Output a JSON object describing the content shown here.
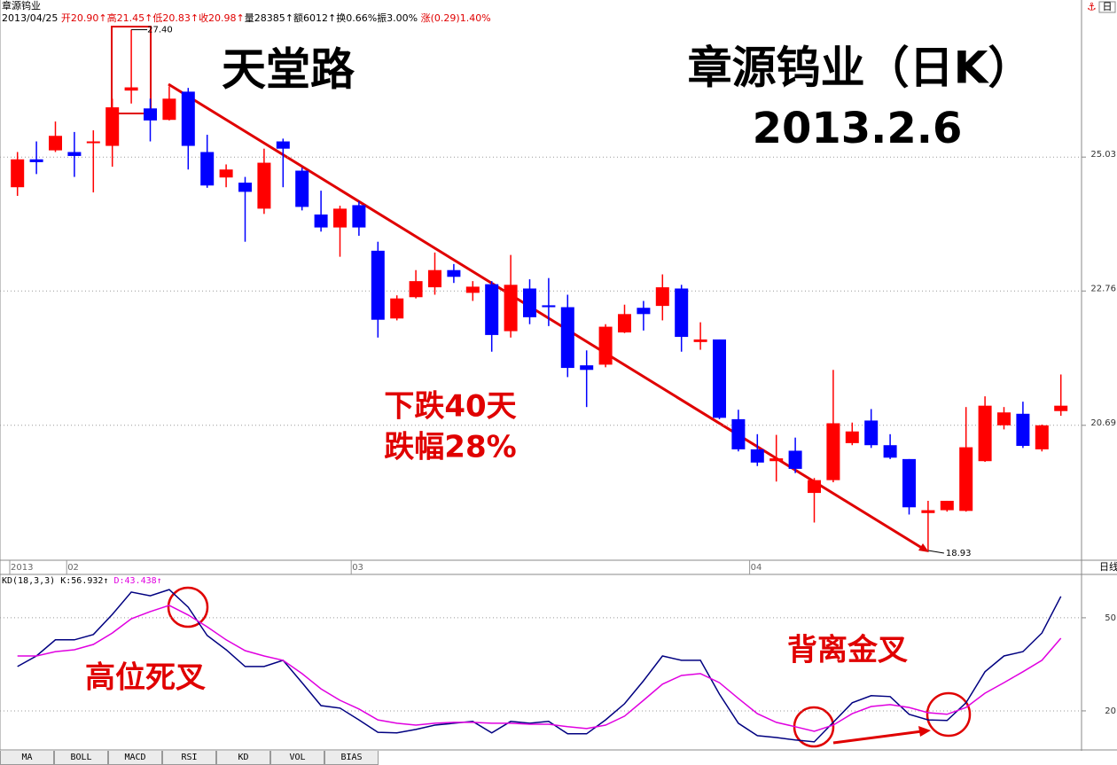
{
  "chart_data": [
    {
      "type": "candlestick",
      "title": "章源钨业",
      "quote": [
        "2013/04/25",
        "开20.90↑",
        "高21.45↑",
        "低20.83↑",
        "收20.98↑",
        "量28385↑",
        "额6012↑",
        "换0.66%",
        "振3.00%",
        "涨(0.29)1.40%"
      ],
      "period": "日",
      "axis_period": "日线",
      "annotations": [
        "天堂路",
        "章源钨业（日K）",
        "2013.2.6",
        "下跌40天",
        "跌幅28%"
      ],
      "max_label": "27.40",
      "min_label": "18.93",
      "categories": [
        "2013",
        null,
        null,
        "02",
        null,
        null,
        null,
        null,
        null,
        null,
        null,
        null,
        null,
        null,
        null,
        null,
        null,
        null,
        "03",
        null,
        null,
        null,
        null,
        null,
        null,
        null,
        null,
        null,
        null,
        null,
        null,
        null,
        null,
        null,
        null,
        null,
        null,
        null,
        null,
        "04",
        null,
        null,
        null,
        null,
        null,
        null,
        null,
        null,
        null,
        null,
        null,
        null,
        null,
        null,
        null,
        null
      ],
      "open": [
        24.5,
        24.99,
        25.15,
        25.12,
        25.28,
        25.23,
        26.24,
        25.91,
        25.7,
        26.22,
        25.12,
        24.67,
        24.58,
        24.13,
        25.31,
        24.79,
        24.03,
        23.81,
        24.19,
        23.42,
        22.32,
        22.66,
        22.82,
        23.1,
        22.73,
        22.87,
        22.12,
        22.8,
        22.53,
        22.5,
        21.59,
        21.6,
        22.1,
        22.49,
        22.52,
        22.8,
        21.95,
        21.99,
        20.78,
        20.34,
        20.17,
        20.32,
        19.72,
        19.9,
        20.43,
        20.76,
        20.4,
        20.2,
        19.44,
        19.48,
        19.47,
        20.17,
        20.69,
        20.86,
        20.34,
        20.9
      ],
      "high": [
        25.12,
        25.31,
        25.67,
        25.48,
        25.51,
        26.09,
        27.4,
        26.09,
        26.32,
        26.29,
        25.43,
        24.9,
        24.68,
        25.18,
        25.36,
        24.84,
        24.44,
        24.18,
        24.26,
        23.57,
        22.69,
        23.1,
        23.39,
        23.2,
        22.92,
        22.92,
        23.35,
        22.95,
        22.97,
        22.7,
        21.82,
        22.23,
        22.54,
        22.6,
        23.03,
        22.86,
        22.26,
        21.99,
        20.92,
        20.56,
        20.55,
        20.51,
        19.93,
        21.52,
        20.73,
        20.93,
        20.56,
        20.2,
        19.61,
        19.61,
        20.96,
        21.12,
        20.96,
        21.04,
        20.7,
        21.45
      ],
      "low": [
        24.35,
        24.73,
        25.12,
        24.68,
        24.41,
        24.86,
        26.0,
        25.31,
        25.69,
        24.81,
        24.49,
        24.5,
        23.57,
        24.04,
        24.5,
        24.1,
        23.74,
        23.32,
        23.67,
        22.02,
        22.29,
        22.64,
        22.7,
        22.89,
        22.6,
        21.8,
        22.02,
        22.23,
        22.2,
        21.41,
        20.96,
        21.56,
        22.09,
        22.13,
        22.29,
        21.8,
        21.83,
        20.78,
        20.31,
        20.1,
        19.88,
        20.0,
        19.31,
        19.87,
        20.4,
        20.36,
        20.2,
        19.42,
        18.93,
        19.46,
        19.46,
        20.16,
        20.63,
        20.36,
        20.31,
        20.83
      ],
      "close": [
        24.99,
        24.94,
        25.41,
        25.05,
        25.31,
        25.93,
        26.3,
        25.69,
        26.09,
        25.23,
        24.53,
        24.81,
        24.42,
        24.93,
        25.18,
        24.16,
        23.81,
        24.13,
        23.81,
        22.3,
        22.64,
        22.92,
        23.1,
        22.99,
        22.83,
        22.06,
        22.86,
        22.34,
        22.5,
        21.55,
        21.52,
        22.19,
        22.39,
        22.39,
        22.82,
        22.03,
        21.99,
        20.8,
        20.34,
        20.15,
        20.21,
        20.06,
        19.9,
        20.72,
        20.6,
        20.4,
        20.22,
        19.52,
        19.48,
        19.61,
        20.37,
        20.98,
        20.88,
        20.39,
        20.69,
        20.98
      ],
      "up_color": "#ff0000",
      "down_color": "#0000ff",
      "log_scale": true,
      "ylim": [
        18.8,
        27.72
      ],
      "yticks": [
        25.03,
        22.76,
        20.69
      ],
      "grid": true
    },
    {
      "type": "line",
      "title": "KD(18,3,3)",
      "annotations": [
        "高位死叉",
        "背离金叉"
      ],
      "series": [
        {
          "name": "K:56.932↑",
          "color": "#000080",
          "values": [
            34.3,
            37.7,
            42.9,
            42.9,
            44.6,
            51.1,
            58.3,
            57.1,
            59.1,
            53.4,
            44.3,
            39.7,
            34.3,
            34.3,
            36.3,
            29.1,
            21.7,
            20.9,
            17.1,
            13.1,
            12.9,
            14.0,
            15.4,
            16.0,
            16.6,
            12.9,
            16.6,
            16.0,
            16.6,
            12.6,
            12.6,
            17.1,
            22.3,
            29.7,
            37.7,
            36.3,
            36.3,
            25.4,
            16.0,
            12.0,
            11.4,
            10.6,
            10.0,
            16.3,
            22.6,
            24.9,
            24.6,
            18.9,
            17.1,
            16.9,
            22.6,
            32.6,
            37.7,
            39.1,
            45.1,
            56.9
          ]
        },
        {
          "name": "D:43.438↑",
          "color": "#e000e0",
          "values": [
            37.7,
            37.7,
            39.1,
            39.7,
            41.4,
            45.1,
            49.7,
            52.0,
            54.0,
            50.9,
            47.1,
            42.9,
            39.4,
            37.7,
            36.3,
            32.0,
            27.1,
            23.4,
            20.6,
            17.1,
            16.0,
            15.4,
            16.0,
            16.3,
            16.3,
            16.0,
            16.0,
            15.7,
            15.7,
            14.9,
            14.3,
            15.4,
            18.3,
            23.4,
            28.6,
            31.4,
            32.0,
            29.1,
            24.0,
            19.1,
            16.3,
            14.9,
            13.4,
            15.4,
            19.1,
            21.4,
            22.0,
            21.1,
            19.4,
            18.9,
            21.1,
            25.7,
            29.1,
            32.6,
            36.3,
            43.4
          ]
        }
      ],
      "ylim": [
        7.7,
        63.4
      ],
      "yticks": [
        50,
        20
      ],
      "grid": true
    },
    {
      "tabs": [
        "MA",
        "BOLL",
        "MACD",
        "RSI",
        "KD",
        "VOL",
        "BIAS"
      ]
    }
  ]
}
